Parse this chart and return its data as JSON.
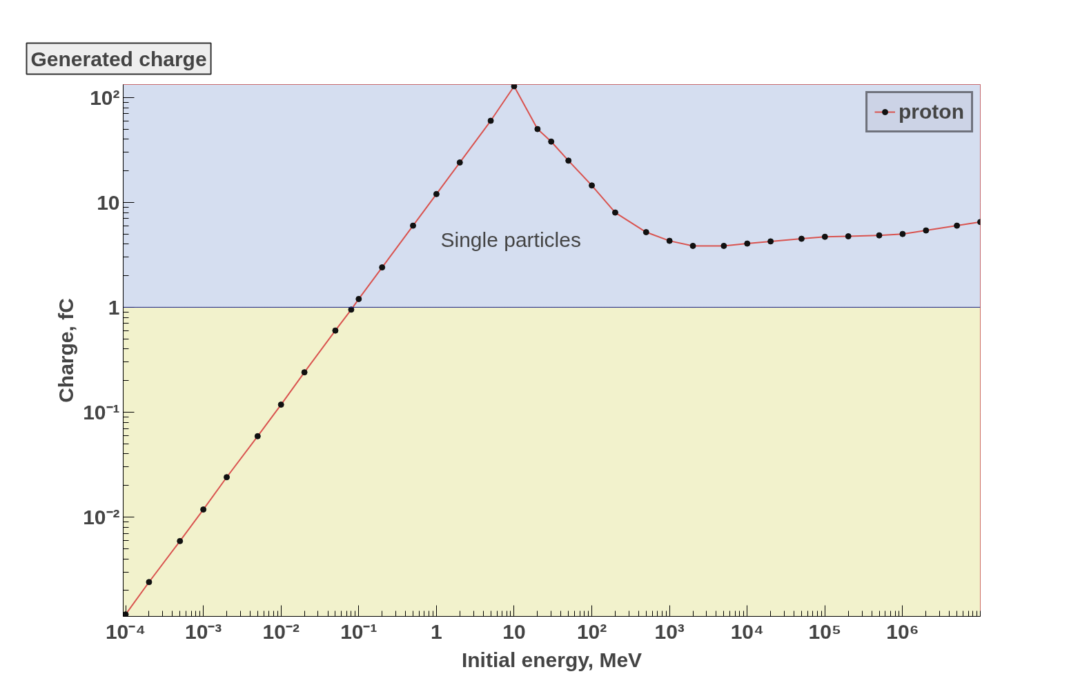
{
  "chart_data": {
    "type": "line",
    "title": "Generated charge",
    "xlabel": "Initial energy, MeV",
    "ylabel": "Charge, fC",
    "log": "xy",
    "grid": true,
    "legend": "top right",
    "marker": "circle",
    "line_style": "solid",
    "xlim": [
      9.3e-05,
      10000000
    ],
    "ylim": [
      0.00113,
      133
    ],
    "xticks": [
      {
        "value": 0.0001,
        "label": "10⁻⁴"
      },
      {
        "value": 0.001,
        "label": "10⁻³"
      },
      {
        "value": 0.01,
        "label": "10⁻²"
      },
      {
        "value": 0.1,
        "label": "10⁻¹"
      },
      1,
      10,
      {
        "value": 100,
        "label": "10²"
      },
      {
        "value": 1000,
        "label": "10³"
      },
      {
        "value": 10000,
        "label": "10⁴"
      },
      {
        "value": 100000,
        "label": "10⁵"
      },
      {
        "value": 1000000,
        "label": "10⁶"
      }
    ],
    "yticks": [
      {
        "value": 0.01,
        "label": "10⁻²"
      },
      {
        "value": 0.1,
        "label": "10⁻¹"
      },
      1,
      10,
      {
        "value": 100,
        "label": "10²"
      }
    ],
    "x": [
      0.0001,
      0.0002,
      0.0005,
      0.001,
      0.002,
      0.005,
      0.01,
      0.02,
      0.05,
      0.08,
      0.1,
      0.2,
      0.5,
      1,
      2,
      5,
      10,
      20,
      30,
      50,
      100,
      200,
      500,
      1000,
      2000,
      5000,
      10000,
      20000,
      50000,
      100000,
      200000,
      500000,
      1000000,
      2000000,
      5000000,
      10000000
    ],
    "series": [
      {
        "name": "proton",
        "color": "#d9534f",
        "values": [
          0.00118,
          0.0024,
          0.0059,
          0.0118,
          0.024,
          0.059,
          0.118,
          0.24,
          0.6,
          0.95,
          1.2,
          2.4,
          6,
          12,
          24,
          60,
          128,
          50,
          38,
          25,
          14.5,
          8,
          5.2,
          4.3,
          3.85,
          3.85,
          4.05,
          4.25,
          4.5,
          4.7,
          4.75,
          4.85,
          5.0,
          5.4,
          6.0,
          6.5
        ]
      }
    ],
    "bands": [
      {
        "axis": "y",
        "from": 1,
        "to": 133,
        "color": "#d5def0"
      },
      {
        "axis": "y",
        "from": 0.00113,
        "to": 1,
        "color": "#f2f2cc"
      }
    ],
    "ref_lines": [
      {
        "axis": "y",
        "value": 1,
        "color": "#1a237e"
      }
    ],
    "annotations": [
      "Single particles"
    ]
  }
}
